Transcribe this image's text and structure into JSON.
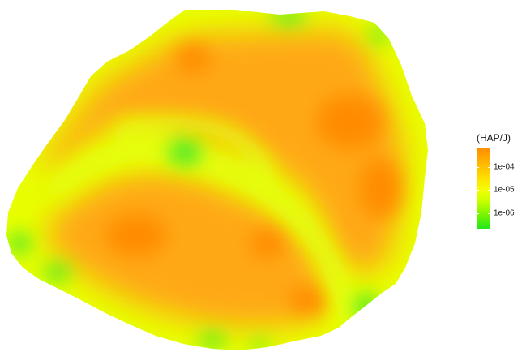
{
  "legend": {
    "title": "(HAP/J)",
    "ticks": [
      {
        "label": "1e-04",
        "fraction": 0.24
      },
      {
        "label": "1e-05",
        "fraction": 0.52
      },
      {
        "label": "1e-06",
        "fraction": 0.81
      }
    ],
    "colors": [
      "#ff8c00",
      "#ffb400",
      "#ffe000",
      "#f4ff00",
      "#c8ff00",
      "#7cf500",
      "#22e81a"
    ]
  },
  "map": {
    "boundary_color": "#e8ff00",
    "interior_color": "#ffa818",
    "hotspot_color": "#ff8c00",
    "river_color": "#e4ff10",
    "low_spot_color": "#3ee82a"
  }
}
